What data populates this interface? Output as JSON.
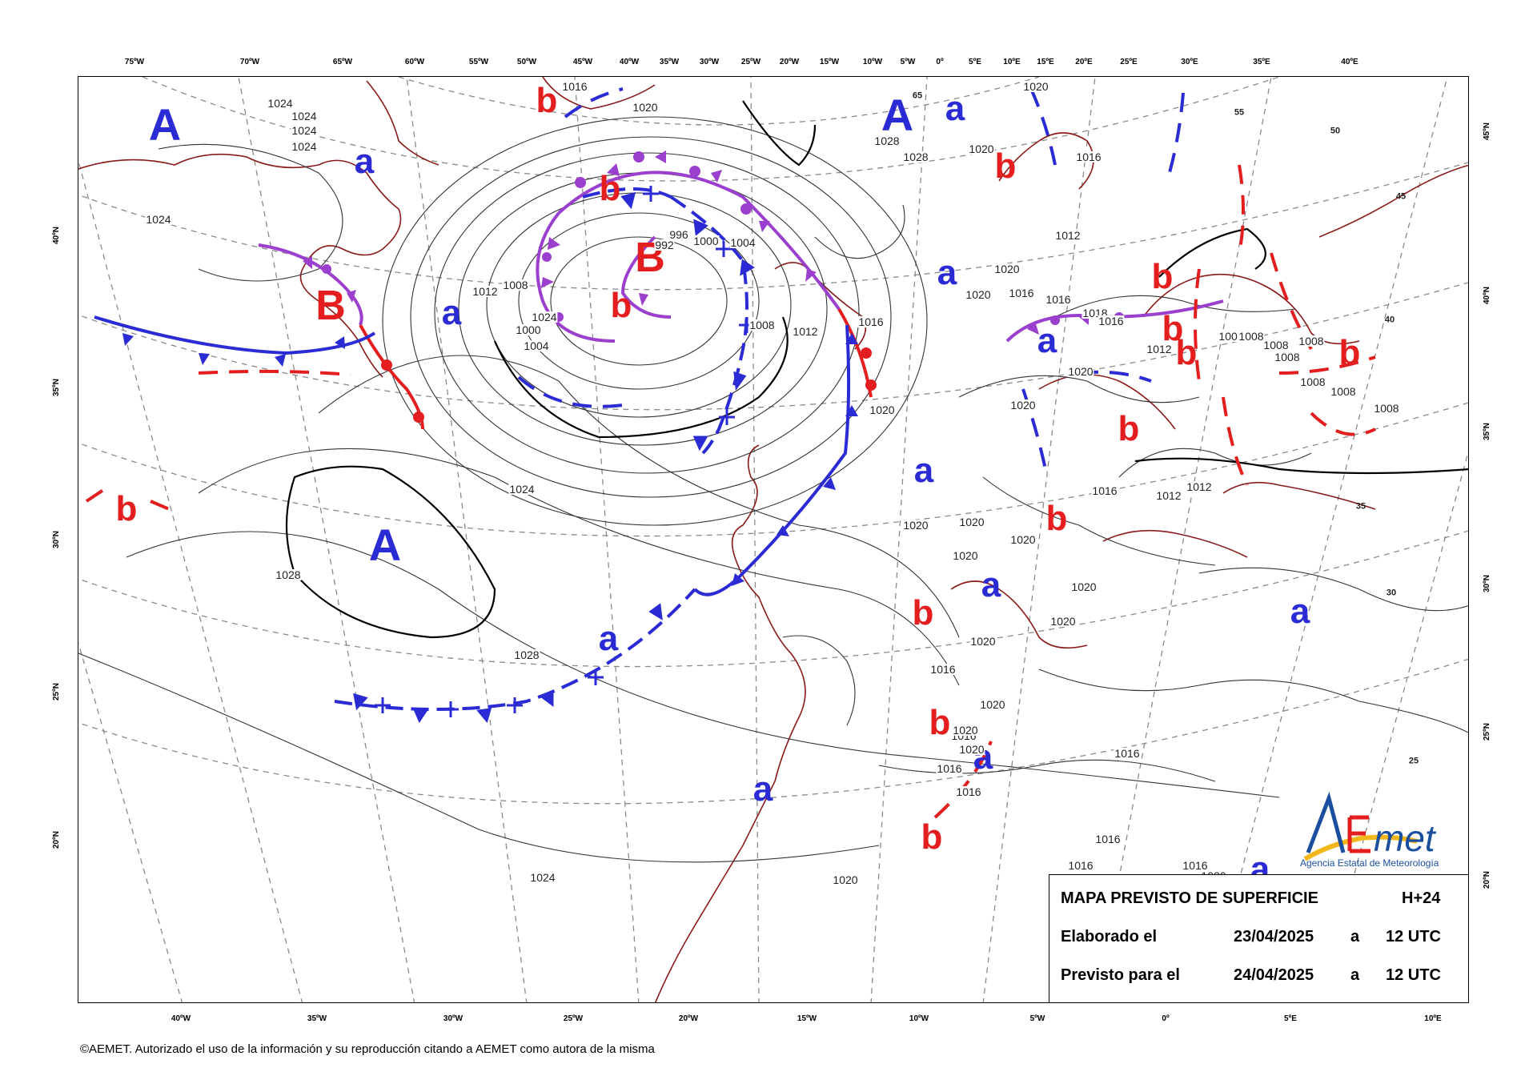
{
  "map": {
    "title": "MAPA PREVISTO DE SUPERFICIE",
    "lead_time": "H+24",
    "issued_label": "Elaborado el",
    "issued_date": "23/04/2025",
    "issued_sep": "a",
    "issued_time": "12 UTC",
    "valid_label": "Previsto para el",
    "valid_date": "24/04/2025",
    "valid_sep": "a",
    "valid_time": "12 UTC"
  },
  "logo": {
    "wordmark": "AEmet",
    "agency": "Agencia Estatal de Meteorología"
  },
  "copyright": "©AEMET. Autorizado el uso de la información y su reproducción citando a AEMET como autora de la misma",
  "top_ticks": [
    "75ºW",
    "70ºW",
    "65ºW",
    "60ºW",
    "55ºW",
    "50ºW",
    "45ºW",
    "40ºW",
    "35ºW",
    "30ºW",
    "25ºW",
    "20ºW",
    "15ºW",
    "10ºW",
    "5ºW",
    "0º",
    "5ºE",
    "10ºE",
    "15ºE",
    "20ºE",
    "25ºE",
    "30ºE",
    "35ºE",
    "40ºE"
  ],
  "bottom_ticks": [
    "40ºW",
    "35ºW",
    "30ºW",
    "25ºW",
    "20ºW",
    "15ºW",
    "10ºW",
    "5ºW",
    "0º",
    "5ºE",
    "10ºE"
  ],
  "left_ticks": [
    "40ºN",
    "35ºN",
    "30ºN",
    "25ºN",
    "20ºN"
  ],
  "right_ticks": [
    "45ºN",
    "40ºN",
    "35ºN",
    "30ºN",
    "25ºN",
    "20ºN"
  ],
  "pressure_systems": [
    {
      "label": "A",
      "kind": "A"
    },
    {
      "label": "A",
      "kind": "A"
    },
    {
      "label": "A",
      "kind": "A"
    },
    {
      "label": "B",
      "kind": "B"
    },
    {
      "label": "B",
      "kind": "B"
    },
    {
      "label": "a",
      "kind": "a"
    },
    {
      "label": "a",
      "kind": "a"
    },
    {
      "label": "a",
      "kind": "a"
    },
    {
      "label": "a",
      "kind": "a"
    },
    {
      "label": "a",
      "kind": "a"
    },
    {
      "label": "a",
      "kind": "a"
    },
    {
      "label": "a",
      "kind": "a"
    },
    {
      "label": "a",
      "kind": "a"
    },
    {
      "label": "a",
      "kind": "a"
    },
    {
      "label": "a",
      "kind": "a"
    },
    {
      "label": "a",
      "kind": "a"
    },
    {
      "label": "a",
      "kind": "a"
    },
    {
      "label": "b",
      "kind": "b"
    },
    {
      "label": "b",
      "kind": "b"
    },
    {
      "label": "b",
      "kind": "b"
    },
    {
      "label": "b",
      "kind": "b"
    },
    {
      "label": "b",
      "kind": "b"
    },
    {
      "label": "b",
      "kind": "b"
    },
    {
      "label": "b",
      "kind": "b"
    },
    {
      "label": "b",
      "kind": "b"
    },
    {
      "label": "b",
      "kind": "b"
    },
    {
      "label": "b",
      "kind": "b"
    },
    {
      "label": "b",
      "kind": "b"
    },
    {
      "label": "b",
      "kind": "b"
    },
    {
      "label": "b",
      "kind": "b"
    },
    {
      "label": "b",
      "kind": "b"
    }
  ],
  "isobar_labels": [
    "1024",
    "1024",
    "1024",
    "1024",
    "1016",
    "1020",
    "1020",
    "1028",
    "1024",
    "1024",
    "1028",
    "1028",
    "1020",
    "996",
    "992",
    "1000",
    "1004",
    "1008",
    "1008",
    "1004",
    "1000",
    "1012",
    "1012",
    "1016",
    "1020",
    "1024",
    "1028",
    "1020",
    "1016",
    "1016",
    "1020",
    "1020",
    "1012",
    "1016",
    "1018",
    "1016",
    "1012",
    "1008",
    "1008",
    "1008",
    "1008",
    "1008",
    "1008",
    "1008",
    "1008",
    "1020",
    "1016",
    "1012",
    "1020",
    "1020",
    "1020",
    "1020",
    "1020",
    "1020",
    "1020",
    "1016",
    "1020",
    "1016",
    "1016",
    "1016",
    "1016",
    "1016",
    "1020",
    "1024",
    "1020",
    "1020",
    "1012",
    "1016",
    "1020",
    "1016"
  ],
  "grid_labels": [
    "65",
    "55",
    "50",
    "45",
    "40",
    "35",
    "30",
    "25"
  ],
  "colors": {
    "high": "#2b2bd6",
    "low": "#e41e1e",
    "occluded": "#9b3fcf",
    "coast": "#8a1a1a",
    "isobar": "#333333"
  }
}
